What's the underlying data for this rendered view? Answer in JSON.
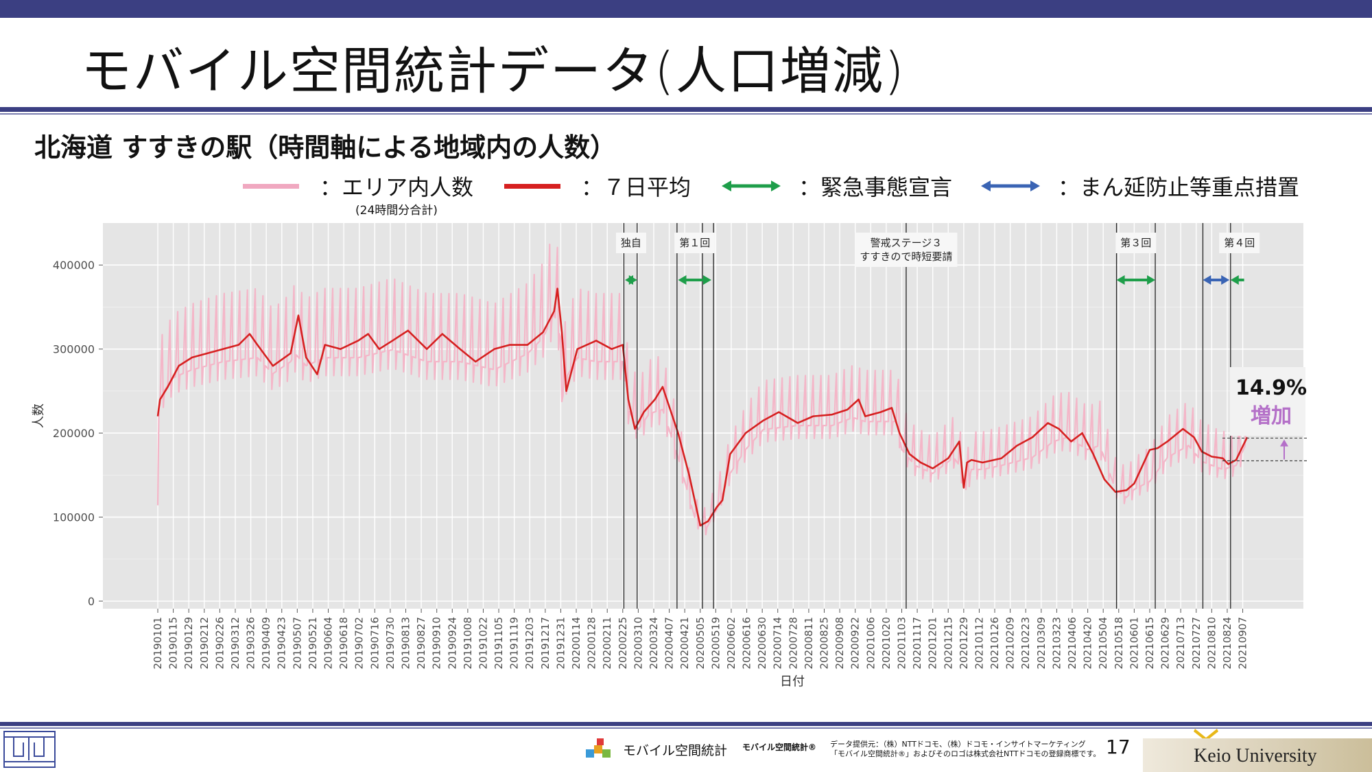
{
  "header": {
    "title": "モバイル空間統計データ(人口増減)",
    "subtitle": "北海道 すすきの駅（時間軸による地域内の人数）"
  },
  "legend": {
    "items": [
      {
        "label": "：エリア内人数",
        "sub": "(24時間分合計)",
        "color": "#f0a8c0",
        "style": "line"
      },
      {
        "label": "：７日平均",
        "color": "#d62020",
        "style": "line"
      },
      {
        "label": "：緊急事態宣言",
        "color": "#1e9e4a",
        "style": "arrow"
      },
      {
        "label": "：まん延防止等重点措置",
        "color": "#3a64b4",
        "style": "arrow"
      }
    ]
  },
  "chart_data": {
    "type": "line",
    "xlabel": "日付",
    "ylabel": "人数",
    "ylim": [
      0,
      450000
    ],
    "yticks": [
      0,
      100000,
      200000,
      300000,
      400000
    ],
    "ytick_labels": [
      "0",
      "100000",
      "200000",
      "300000",
      "400000"
    ],
    "xticks": [
      "20190101",
      "20190115",
      "20190129",
      "20190212",
      "20190226",
      "20190312",
      "20190326",
      "20190409",
      "20190423",
      "20190507",
      "20190521",
      "20190604",
      "20190618",
      "20190702",
      "20190716",
      "20190730",
      "20190813",
      "20190827",
      "20190910",
      "20190924",
      "20191008",
      "20191022",
      "20191105",
      "20191119",
      "20191203",
      "20191217",
      "20191231",
      "20200114",
      "20200128",
      "20200211",
      "20200225",
      "20200310",
      "20200324",
      "20200407",
      "20200421",
      "20200505",
      "20200519",
      "20200602",
      "20200616",
      "20200630",
      "20200714",
      "20200728",
      "20200811",
      "20200825",
      "20200908",
      "20200922",
      "20201006",
      "20201020",
      "20201103",
      "20201117",
      "20201201",
      "20201215",
      "20201229",
      "20210112",
      "20210126",
      "20210209",
      "20210223",
      "20210309",
      "20210323",
      "20210406",
      "20210420",
      "20210504",
      "20210518",
      "20210601",
      "20210615",
      "20210629",
      "20210713",
      "20210727",
      "20210810",
      "20210824",
      "20210907"
    ],
    "x_start": "20190101",
    "x_end": "20210911",
    "grid": true,
    "background": "#e5e5e5",
    "series": [
      {
        "name": "エリア内人数",
        "color": "#f4b6c8",
        "dates": [
          "20190101",
          "20190102",
          "20190105",
          "20190115",
          "20190201",
          "20190301",
          "20190401",
          "20190415",
          "20190501",
          "20190505",
          "20190515",
          "20190601",
          "20190701",
          "20190801",
          "20190901",
          "20191001",
          "20191101",
          "20191201",
          "20191215",
          "20191225",
          "20191231",
          "20200101",
          "20200105",
          "20200115",
          "20200201",
          "20200225",
          "20200301",
          "20200310",
          "20200320",
          "20200401",
          "20200415",
          "20200501",
          "20200510",
          "20200520",
          "20200601",
          "20200615",
          "20200701",
          "20200801",
          "20200901",
          "20200920",
          "20201001",
          "20201030",
          "20201103",
          "20201115",
          "20201201",
          "20201220",
          "20201225",
          "20201231",
          "20210105",
          "20210115",
          "20210201",
          "20210301",
          "20210320",
          "20210401",
          "20210420",
          "20210501",
          "20210515",
          "20210525",
          "20210601",
          "20210615",
          "20210701",
          "20210720",
          "20210801",
          "20210820",
          "20210901",
          "20210911"
        ],
        "values": [
          120000,
          240000,
          260000,
          280000,
          290000,
          300000,
          305000,
          285000,
          300000,
          310000,
          295000,
          305000,
          305000,
          315000,
          300000,
          300000,
          290000,
          310000,
          330000,
          360000,
          330000,
          250000,
          280000,
          305000,
          300000,
          300000,
          240000,
          215000,
          235000,
          240000,
          180000,
          100000,
          90000,
          115000,
          160000,
          190000,
          215000,
          220000,
          220000,
          230000,
          225000,
          225000,
          190000,
          170000,
          160000,
          180000,
          170000,
          140000,
          165000,
          165000,
          170000,
          180000,
          200000,
          205000,
          190000,
          195000,
          140000,
          130000,
          140000,
          150000,
          180000,
          195000,
          175000,
          165000,
          170000,
          200000
        ]
      },
      {
        "name": "７日平均",
        "color": "#d62020",
        "dates": [
          "20190101",
          "20190103",
          "20190110",
          "20190120",
          "20190201",
          "20190215",
          "20190301",
          "20190315",
          "20190325",
          "20190401",
          "20190415",
          "20190501",
          "20190508",
          "20190515",
          "20190525",
          "20190601",
          "20190615",
          "20190701",
          "20190710",
          "20190720",
          "20190801",
          "20190815",
          "20190901",
          "20190915",
          "20191001",
          "20191015",
          "20191101",
          "20191115",
          "20191201",
          "20191215",
          "20191225",
          "20191228",
          "20200101",
          "20200105",
          "20200115",
          "20200201",
          "20200215",
          "20200225",
          "20200301",
          "20200307",
          "20200315",
          "20200325",
          "20200401",
          "20200415",
          "20200425",
          "20200505",
          "20200512",
          "20200520",
          "20200525",
          "20200601",
          "20200615",
          "20200701",
          "20200715",
          "20200801",
          "20200815",
          "20200901",
          "20200915",
          "20200925",
          "20201001",
          "20201015",
          "20201025",
          "20201101",
          "20201110",
          "20201120",
          "20201201",
          "20201215",
          "20201225",
          "20201229",
          "20210101",
          "20210105",
          "20210115",
          "20210201",
          "20210215",
          "20210301",
          "20210315",
          "20210325",
          "20210405",
          "20210415",
          "20210425",
          "20210505",
          "20210515",
          "20210525",
          "20210601",
          "20210615",
          "20210622",
          "20210701",
          "20210715",
          "20210725",
          "20210801",
          "20210810",
          "20210820",
          "20210825",
          "20210901",
          "20210911"
        ],
        "values": [
          220000,
          240000,
          255000,
          280000,
          290000,
          295000,
          300000,
          305000,
          318000,
          305000,
          280000,
          295000,
          340000,
          290000,
          270000,
          305000,
          300000,
          310000,
          318000,
          300000,
          310000,
          322000,
          300000,
          318000,
          300000,
          285000,
          300000,
          305000,
          305000,
          320000,
          345000,
          372000,
          320000,
          250000,
          300000,
          310000,
          300000,
          305000,
          240000,
          205000,
          225000,
          240000,
          255000,
          200000,
          150000,
          90000,
          95000,
          112000,
          120000,
          175000,
          200000,
          215000,
          225000,
          212000,
          220000,
          222000,
          228000,
          240000,
          220000,
          225000,
          230000,
          200000,
          175000,
          165000,
          158000,
          170000,
          190000,
          135000,
          165000,
          168000,
          165000,
          170000,
          185000,
          195000,
          212000,
          205000,
          190000,
          200000,
          175000,
          145000,
          130000,
          132000,
          140000,
          180000,
          182000,
          190000,
          205000,
          195000,
          178000,
          172000,
          170000,
          163000,
          168000,
          195000
        ]
      }
    ],
    "event_lines": [
      "20200226",
      "20200309",
      "20200414",
      "20200507",
      "20200517",
      "20201107",
      "20210516",
      "20210620",
      "20210802",
      "20210827"
    ],
    "events": [
      {
        "label": "独自",
        "start": "20200227",
        "end": "20200309",
        "type": "緊急事態宣言",
        "color": "#1e9e4a"
      },
      {
        "label": "第１回",
        "start": "20200415",
        "end": "20200515",
        "type": "緊急事態宣言",
        "color": "#1e9e4a"
      },
      {
        "label": "警戒ステージ３\nすすきので時短要請",
        "start": "20201107",
        "end": null,
        "type": "note",
        "color": null
      },
      {
        "label": "第３回",
        "start": "20210516",
        "end": "20210620",
        "type": "緊急事態宣言",
        "color": "#1e9e4a"
      },
      {
        "label": "",
        "start": "20210802",
        "end": "20210826",
        "type": "まん延防止等重点措置",
        "color": "#3a64b4"
      },
      {
        "label": "第４回",
        "start": "20210827",
        "end": "20210912",
        "type": "緊急事態宣言",
        "color": "#1e9e4a"
      }
    ],
    "annotation": {
      "value": "14.9%",
      "label": "増加",
      "color": "#b470c8",
      "low": 167000,
      "high": 194000
    }
  },
  "footer": {
    "brand": "モバイル空間統計",
    "brand_reg": "モバイル空間統計®",
    "credit_line1": "データ提供元：（株）NTTドコモ、（株）ドコモ・インサイトマーケティング",
    "credit_line2": "「モバイル空間統計®」およびそのロゴは株式会社NTTドコモの登録商標です。",
    "page": "17",
    "university": "Keio University"
  }
}
